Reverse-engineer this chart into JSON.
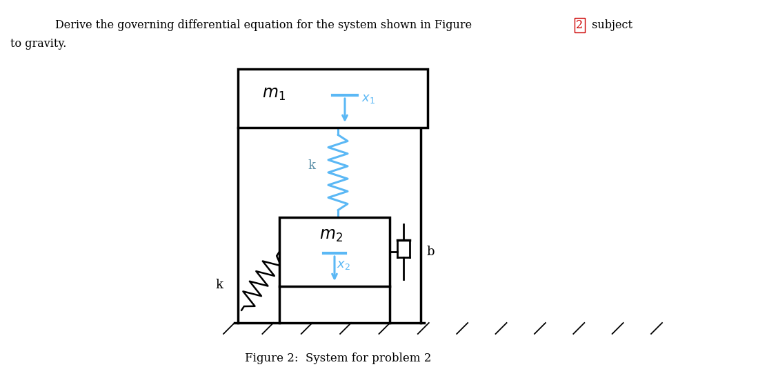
{
  "bg_color": "#ffffff",
  "text_color": "#000000",
  "blue_color": "#5bb8f5",
  "red_color": "#cc0000",
  "frame_color": "#000000",
  "m1_label": "$m_1$",
  "m2_label": "$m_2$",
  "x1_label": "$x_1$",
  "x2_label": "$x_2$",
  "k_left_label": "k",
  "k_center_label": "k",
  "b_label": "b",
  "fig_title": "Figure 2:  System for problem 2",
  "header_line1": "Derive the governing differential equation for the system shown in Figure ",
  "header_fig2": "2",
  "header_line1b": " subject",
  "header_line2": "to gravity."
}
